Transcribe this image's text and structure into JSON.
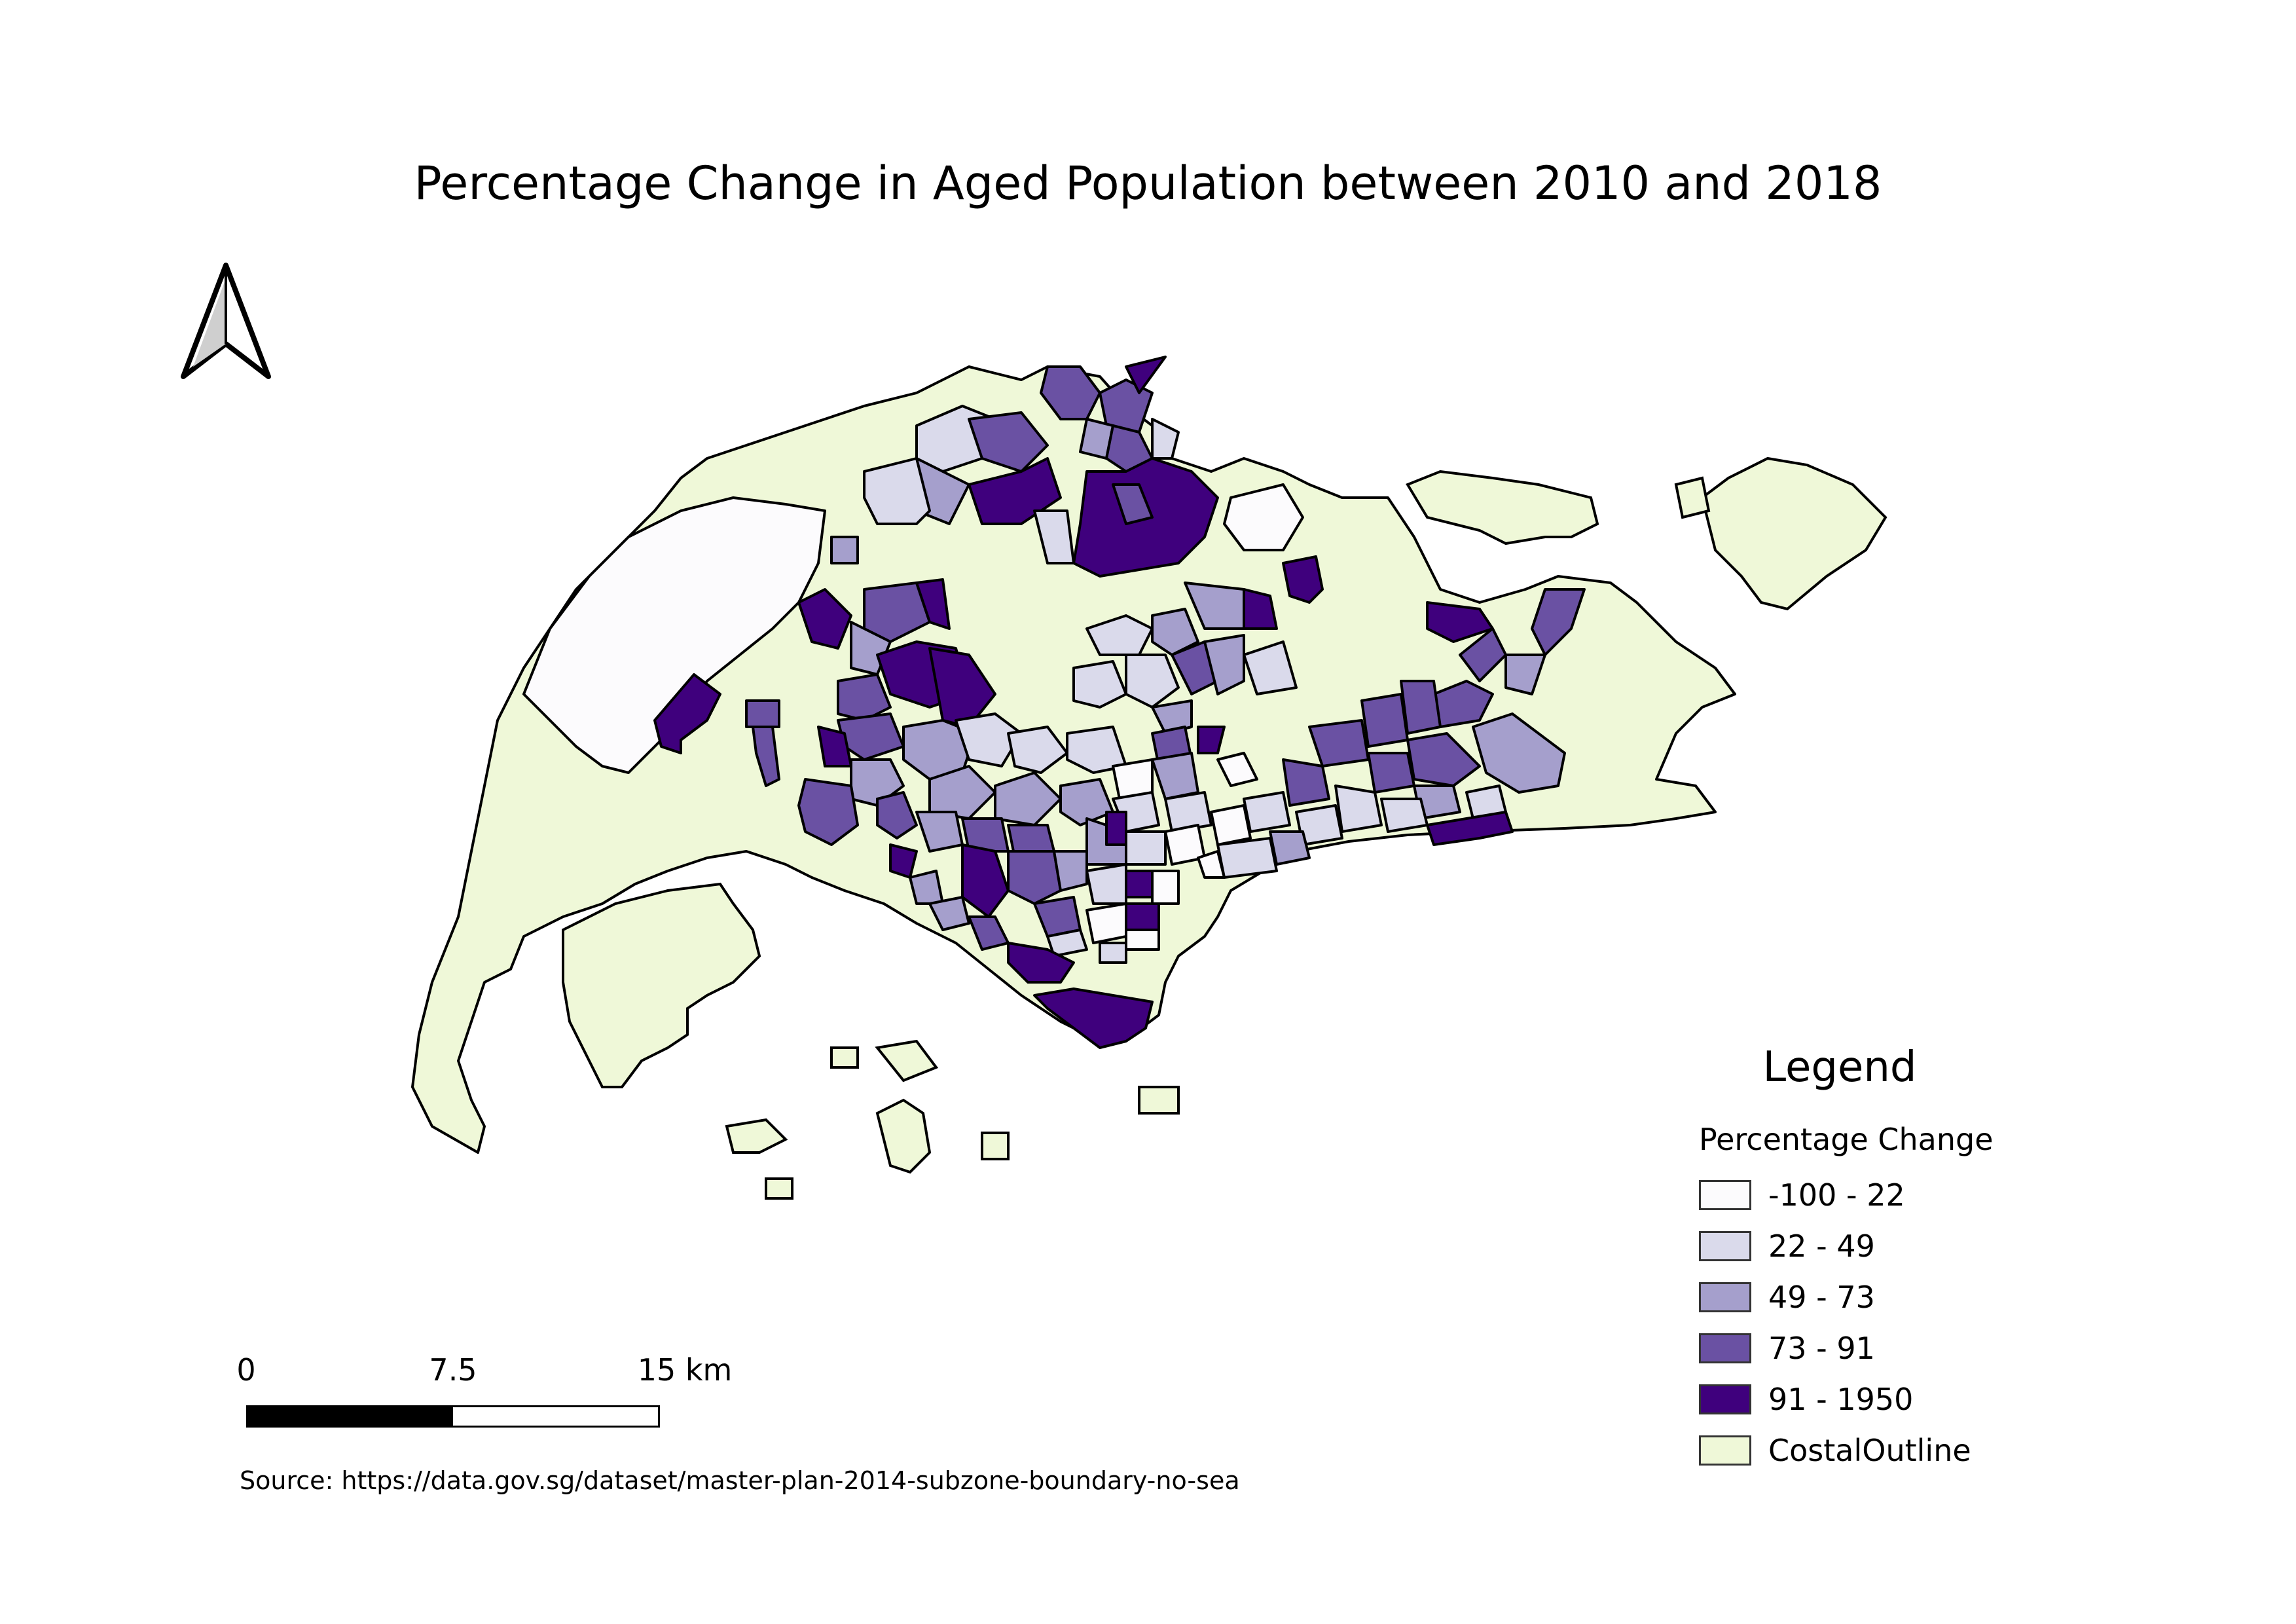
{
  "map": {
    "title": "Percentage Change in Aged Population between 2010 and 2018",
    "source": "Source: https://data.gov.sg/dataset/master-plan-2014-subzone-boundary-no-sea",
    "north_arrow_icon": "north-arrow-icon"
  },
  "legend": {
    "title": "Legend",
    "subtitle": "Percentage Change",
    "items": [
      {
        "label": "-100 - 22",
        "color": "#fcfbfd"
      },
      {
        "label": "22 - 49",
        "color": "#dadaeb"
      },
      {
        "label": "49 - 73",
        "color": "#a59fcc"
      },
      {
        "label": "73 - 91",
        "color": "#6a51a3"
      },
      {
        "label": "91 - 1950",
        "color": "#3f007d"
      },
      {
        "label": "CostalOutline",
        "color": "#eff8d8"
      }
    ]
  },
  "scale": {
    "labels": [
      "0",
      "7.5",
      "15 km"
    ]
  }
}
